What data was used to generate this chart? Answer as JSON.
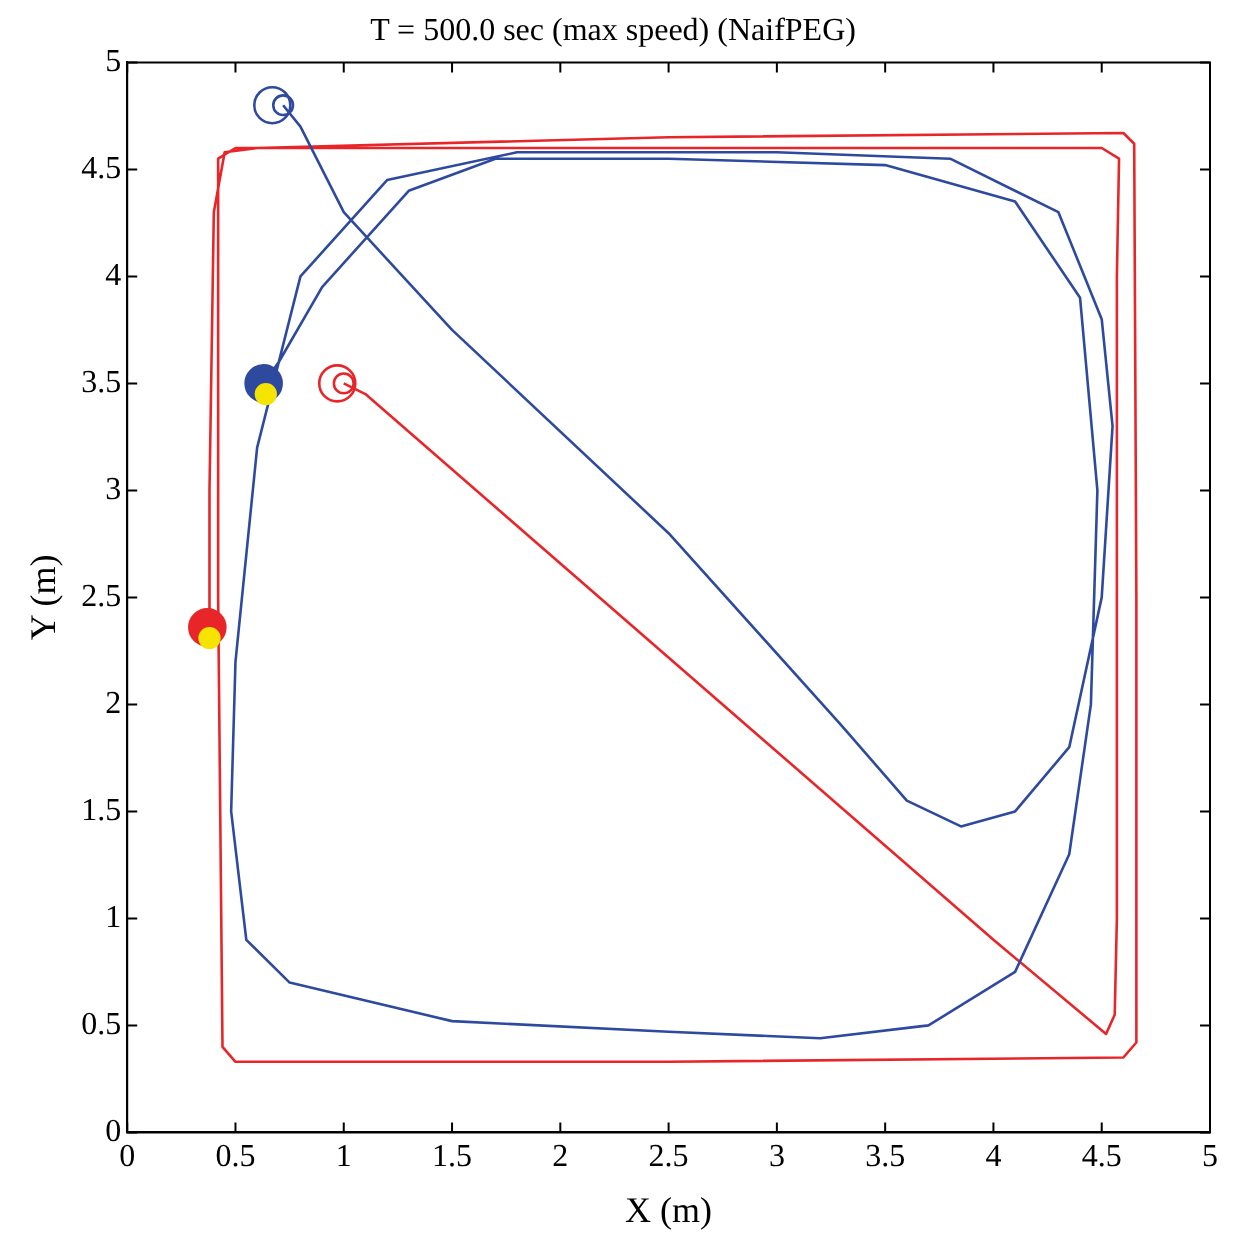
{
  "chart_data": {
    "type": "line",
    "title": "T = 500.0 sec (max speed) (NaifPEG)",
    "xlabel": "X (m)",
    "ylabel": "Y (m)",
    "xlim": [
      0,
      5
    ],
    "ylim": [
      0,
      5
    ],
    "xticks": [
      0,
      0.5,
      1,
      1.5,
      2,
      2.5,
      3,
      3.5,
      4,
      4.5,
      5
    ],
    "yticks": [
      0,
      0.5,
      1,
      1.5,
      2,
      2.5,
      3,
      3.5,
      4,
      4.5,
      5
    ],
    "grid": false,
    "legend": false,
    "series": [
      {
        "color": "#e8262a",
        "x": [
          1.0,
          1.1,
          4.0,
          4.52,
          4.56,
          4.57,
          4.57,
          4.58,
          4.5,
          2.5,
          0.5,
          0.42,
          0.42,
          0.44,
          0.5,
          2.5,
          4.6,
          4.66,
          4.66,
          4.65,
          4.6,
          2.5,
          0.6,
          0.45,
          0.4,
          0.38,
          0.38
        ],
        "values": [
          3.5,
          3.45,
          0.9,
          0.46,
          0.55,
          1.0,
          4.0,
          4.55,
          4.6,
          4.6,
          4.6,
          4.55,
          2.5,
          0.4,
          0.33,
          0.33,
          0.35,
          0.42,
          2.5,
          4.62,
          4.67,
          4.65,
          4.6,
          4.58,
          4.3,
          3.0,
          2.36
        ]
      },
      {
        "color": "#2e4a9e",
        "x": [
          0.72,
          0.8,
          1.0,
          1.5,
          2.5,
          3.3,
          3.6,
          3.85,
          4.1,
          4.35,
          4.5,
          4.55,
          4.5,
          4.3,
          3.8,
          3.0,
          1.8,
          1.2,
          0.8,
          0.6,
          0.5,
          0.48,
          0.55,
          0.75,
          1.5,
          2.5,
          3.2,
          3.7,
          4.1,
          4.35,
          4.45,
          4.48,
          4.4,
          4.1,
          3.5,
          2.5,
          1.7,
          1.3,
          0.9,
          0.7,
          0.63
        ],
        "values": [
          4.8,
          4.7,
          4.3,
          3.75,
          2.8,
          1.9,
          1.55,
          1.43,
          1.5,
          1.8,
          2.5,
          3.3,
          3.8,
          4.3,
          4.55,
          4.58,
          4.58,
          4.45,
          4.0,
          3.2,
          2.2,
          1.5,
          0.9,
          0.7,
          0.52,
          0.47,
          0.44,
          0.5,
          0.75,
          1.3,
          2.0,
          3.0,
          3.9,
          4.35,
          4.52,
          4.55,
          4.55,
          4.4,
          3.95,
          3.6,
          3.5
        ]
      },
      {
        "type": "bubble",
        "color": "#e8262a",
        "x": [
          0.97,
          1.0
        ],
        "values": [
          3.5,
          3.5
        ],
        "sizes": [
          1,
          0.3
        ]
      },
      {
        "type": "bubble",
        "color": "#2e4a9e",
        "x": [
          0.67,
          0.72
        ],
        "values": [
          4.8,
          4.8
        ],
        "sizes": [
          1,
          0.3
        ]
      },
      {
        "type": "scatter",
        "color": "#e8262a",
        "x": [
          0.37
        ],
        "values": [
          2.36
        ],
        "sizes": [
          1
        ]
      },
      {
        "type": "scatter",
        "color": "#2e4a9e",
        "x": [
          0.63
        ],
        "values": [
          3.5
        ],
        "sizes": [
          1
        ]
      },
      {
        "type": "scatter",
        "color": "#f5e400",
        "x": [
          0.38,
          0.64
        ],
        "values": [
          2.31,
          3.45
        ],
        "sizes": [
          0.3,
          0.3
        ]
      }
    ]
  }
}
